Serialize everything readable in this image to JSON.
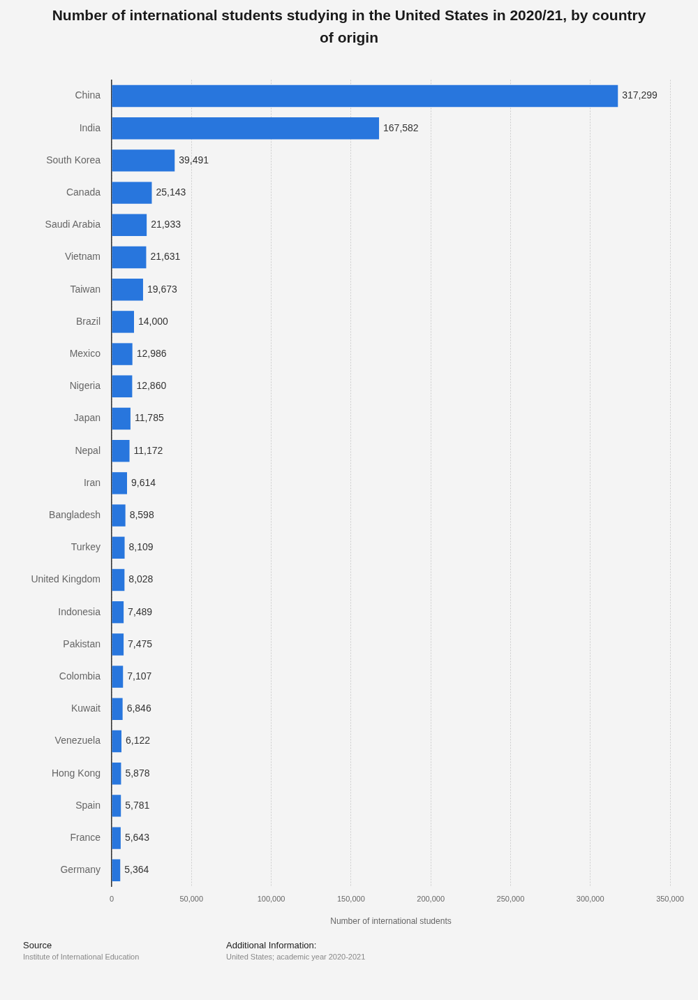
{
  "chart_data": {
    "type": "bar",
    "orientation": "horizontal",
    "title": "Number of international students studying in the United States in 2020/21, by country of origin",
    "xlabel": "Number of international students",
    "categories": [
      "China",
      "India",
      "South Korea",
      "Canada",
      "Saudi Arabia",
      "Vietnam",
      "Taiwan",
      "Brazil",
      "Mexico",
      "Nigeria",
      "Japan",
      "Nepal",
      "Iran",
      "Bangladesh",
      "Turkey",
      "United Kingdom",
      "Indonesia",
      "Pakistan",
      "Colombia",
      "Kuwait",
      "Venezuela",
      "Hong Kong",
      "Spain",
      "France",
      "Germany"
    ],
    "values": [
      317299,
      167582,
      39491,
      25143,
      21933,
      21631,
      19673,
      14000,
      12986,
      12860,
      11785,
      11172,
      9614,
      8598,
      8109,
      8028,
      7489,
      7475,
      7107,
      6846,
      6122,
      5878,
      5781,
      5643,
      5364
    ],
    "value_labels": [
      "317,299",
      "167,582",
      "39,491",
      "25,143",
      "21,933",
      "21,631",
      "19,673",
      "14,000",
      "12,986",
      "12,860",
      "11,785",
      "11,172",
      "9,614",
      "8,598",
      "8,109",
      "8,028",
      "7,489",
      "7,475",
      "7,107",
      "6,846",
      "6,122",
      "5,878",
      "5,781",
      "5,643",
      "5,364"
    ],
    "color": "#2876dd",
    "xlim": [
      0,
      350000
    ],
    "xticks": [
      0,
      {
        "value": 50000,
        "label": "50,000"
      },
      {
        "value": 100000,
        "label": "100,000"
      },
      {
        "value": 150000,
        "label": "150,000"
      },
      {
        "value": 200000,
        "label": "200,000"
      },
      {
        "value": 250000,
        "label": "250,000"
      },
      {
        "value": 300000,
        "label": "300,000"
      },
      {
        "value": 350000,
        "label": "350,000"
      }
    ],
    "grid": "x",
    "annotations": [
      "Source",
      "Institute of International Education",
      "Additional Information:",
      "United States; academic year 2020-2021"
    ]
  }
}
